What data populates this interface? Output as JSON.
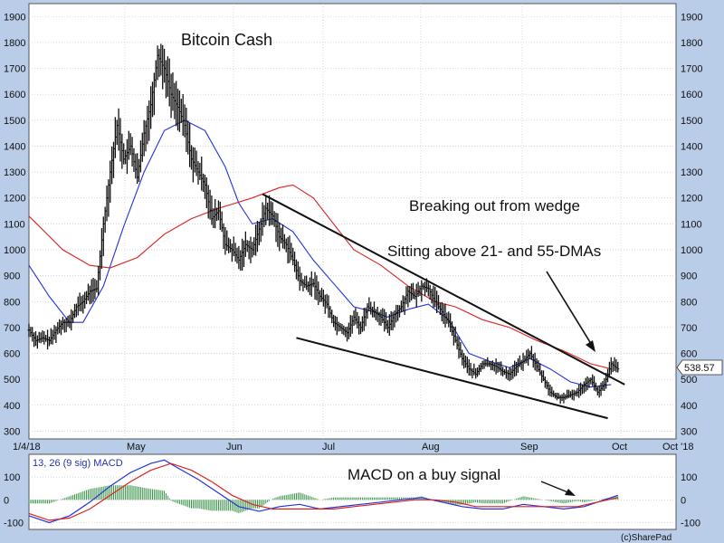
{
  "chart_data": [
    {
      "type": "candlestick",
      "title": "Bitcoin Cash",
      "x_tick_labels": [
        "1/4/18",
        "May",
        "Jun",
        "Jul",
        "Aug",
        "Sep",
        "Oct",
        "Oct '18"
      ],
      "y_ticks": [
        300,
        400,
        500,
        600,
        700,
        800,
        900,
        1000,
        1100,
        1200,
        1300,
        1400,
        1500,
        1600,
        1700,
        1800,
        1900
      ],
      "ylim": [
        270,
        1950
      ],
      "grid": true,
      "last_price_label": "538.57",
      "last_price": 538.57,
      "annotations": [
        "Breaking out from wedge",
        "Sitting above 21- and 55-DMAs"
      ],
      "price_points": [
        [
          0,
          690
        ],
        [
          4,
          650
        ],
        [
          8,
          660
        ],
        [
          12,
          650
        ],
        [
          16,
          690
        ],
        [
          20,
          720
        ],
        [
          24,
          720
        ],
        [
          28,
          780
        ],
        [
          32,
          800
        ],
        [
          36,
          840
        ],
        [
          40,
          850
        ],
        [
          44,
          1100
        ],
        [
          48,
          1300
        ],
        [
          52,
          1480
        ],
        [
          56,
          1350
        ],
        [
          60,
          1400
        ],
        [
          64,
          1280
        ],
        [
          68,
          1450
        ],
        [
          72,
          1560
        ],
        [
          76,
          1750
        ],
        [
          80,
          1700
        ],
        [
          84,
          1600
        ],
        [
          88,
          1550
        ],
        [
          92,
          1480
        ],
        [
          96,
          1350
        ],
        [
          100,
          1300
        ],
        [
          104,
          1250
        ],
        [
          108,
          1120
        ],
        [
          112,
          1150
        ],
        [
          116,
          1020
        ],
        [
          120,
          1000
        ],
        [
          124,
          960
        ],
        [
          128,
          1020
        ],
        [
          132,
          1000
        ],
        [
          136,
          1080
        ],
        [
          140,
          1160
        ],
        [
          144,
          1130
        ],
        [
          148,
          1050
        ],
        [
          152,
          1020
        ],
        [
          156,
          960
        ],
        [
          160,
          880
        ],
        [
          164,
          860
        ],
        [
          168,
          870
        ],
        [
          172,
          820
        ],
        [
          176,
          790
        ],
        [
          180,
          720
        ],
        [
          184,
          700
        ],
        [
          188,
          680
        ],
        [
          192,
          740
        ],
        [
          196,
          700
        ],
        [
          200,
          780
        ],
        [
          204,
          760
        ],
        [
          208,
          740
        ],
        [
          212,
          700
        ],
        [
          216,
          750
        ],
        [
          220,
          780
        ],
        [
          224,
          840
        ],
        [
          228,
          820
        ],
        [
          232,
          860
        ],
        [
          236,
          850
        ],
        [
          240,
          800
        ],
        [
          244,
          760
        ],
        [
          248,
          720
        ],
        [
          252,
          650
        ],
        [
          256,
          580
        ],
        [
          260,
          540
        ],
        [
          264,
          520
        ],
        [
          268,
          560
        ],
        [
          272,
          560
        ],
        [
          276,
          550
        ],
        [
          280,
          530
        ],
        [
          284,
          520
        ],
        [
          288,
          550
        ],
        [
          292,
          570
        ],
        [
          296,
          600
        ],
        [
          300,
          550
        ],
        [
          304,
          500
        ],
        [
          308,
          450
        ],
        [
          312,
          430
        ],
        [
          316,
          430
        ],
        [
          320,
          440
        ],
        [
          324,
          450
        ],
        [
          328,
          480
        ],
        [
          332,
          500
        ],
        [
          336,
          450
        ],
        [
          340,
          480
        ],
        [
          344,
          560
        ],
        [
          348,
          540
        ]
      ],
      "series": [
        {
          "name": "21-DMA",
          "color": "#2233dd",
          "values": [
            [
              0,
              940
            ],
            [
              12,
              820
            ],
            [
              24,
              720
            ],
            [
              32,
              720
            ],
            [
              44,
              860
            ],
            [
              56,
              1090
            ],
            [
              68,
              1300
            ],
            [
              80,
              1460
            ],
            [
              92,
              1500
            ],
            [
              104,
              1460
            ],
            [
              116,
              1320
            ],
            [
              124,
              1180
            ],
            [
              132,
              1100
            ],
            [
              144,
              1120
            ],
            [
              156,
              1070
            ],
            [
              168,
              960
            ],
            [
              180,
              870
            ],
            [
              192,
              780
            ],
            [
              204,
              760
            ],
            [
              212,
              740
            ],
            [
              224,
              770
            ],
            [
              236,
              790
            ],
            [
              248,
              730
            ],
            [
              260,
              600
            ],
            [
              272,
              570
            ],
            [
              284,
              545
            ],
            [
              296,
              580
            ],
            [
              308,
              540
            ],
            [
              320,
              490
            ],
            [
              332,
              470
            ],
            [
              344,
              480
            ]
          ]
        },
        {
          "name": "55-DMA",
          "color": "#dd2222",
          "values": [
            [
              0,
              1130
            ],
            [
              20,
              1000
            ],
            [
              36,
              940
            ],
            [
              48,
              930
            ],
            [
              64,
              970
            ],
            [
              80,
              1060
            ],
            [
              96,
              1120
            ],
            [
              112,
              1160
            ],
            [
              132,
              1200
            ],
            [
              148,
              1240
            ],
            [
              156,
              1250
            ],
            [
              168,
              1200
            ],
            [
              180,
              1100
            ],
            [
              192,
              1000
            ],
            [
              208,
              940
            ],
            [
              224,
              860
            ],
            [
              240,
              800
            ],
            [
              252,
              780
            ],
            [
              268,
              730
            ],
            [
              284,
              700
            ],
            [
              300,
              650
            ],
            [
              316,
              610
            ],
            [
              332,
              560
            ],
            [
              344,
              540
            ]
          ]
        }
      ],
      "wedge_lines": [
        {
          "from": [
            138,
            1215
          ],
          "to": [
            352,
            480
          ]
        },
        {
          "from": [
            158,
            660
          ],
          "to": [
            342,
            350
          ]
        }
      ]
    },
    {
      "type": "line",
      "title": "13, 26 (9 sig) MACD",
      "ylim": [
        -130,
        200
      ],
      "y_ticks": [
        -100,
        0,
        100
      ],
      "annotation": "MACD on a buy signal",
      "series": [
        {
          "name": "MACD",
          "color": "#2233dd",
          "values": [
            [
              0,
              -70
            ],
            [
              12,
              -100
            ],
            [
              24,
              -70
            ],
            [
              36,
              -10
            ],
            [
              48,
              60
            ],
            [
              60,
              120
            ],
            [
              72,
              160
            ],
            [
              80,
              175
            ],
            [
              88,
              140
            ],
            [
              100,
              90
            ],
            [
              112,
              30
            ],
            [
              124,
              -30
            ],
            [
              136,
              -50
            ],
            [
              148,
              -30
            ],
            [
              160,
              -20
            ],
            [
              172,
              -40
            ],
            [
              184,
              -30
            ],
            [
              196,
              -20
            ],
            [
              208,
              -10
            ],
            [
              220,
              0
            ],
            [
              232,
              10
            ],
            [
              244,
              -10
            ],
            [
              256,
              -30
            ],
            [
              268,
              -40
            ],
            [
              280,
              -40
            ],
            [
              292,
              -20
            ],
            [
              304,
              -30
            ],
            [
              316,
              -40
            ],
            [
              328,
              -30
            ],
            [
              340,
              0
            ],
            [
              348,
              20
            ]
          ]
        },
        {
          "name": "Signal",
          "color": "#dd2222",
          "values": [
            [
              0,
              -60
            ],
            [
              12,
              -90
            ],
            [
              24,
              -80
            ],
            [
              36,
              -40
            ],
            [
              48,
              20
            ],
            [
              60,
              80
            ],
            [
              72,
              130
            ],
            [
              84,
              160
            ],
            [
              96,
              130
            ],
            [
              108,
              80
            ],
            [
              120,
              20
            ],
            [
              132,
              -20
            ],
            [
              144,
              -40
            ],
            [
              156,
              -40
            ],
            [
              168,
              -40
            ],
            [
              180,
              -40
            ],
            [
              192,
              -30
            ],
            [
              204,
              -20
            ],
            [
              216,
              -10
            ],
            [
              228,
              0
            ],
            [
              240,
              0
            ],
            [
              252,
              -10
            ],
            [
              264,
              -30
            ],
            [
              276,
              -30
            ],
            [
              288,
              -30
            ],
            [
              300,
              -30
            ],
            [
              312,
              -30
            ],
            [
              324,
              -30
            ],
            [
              336,
              -10
            ],
            [
              348,
              10
            ]
          ]
        }
      ]
    }
  ],
  "copyright": "(c)SharePad"
}
